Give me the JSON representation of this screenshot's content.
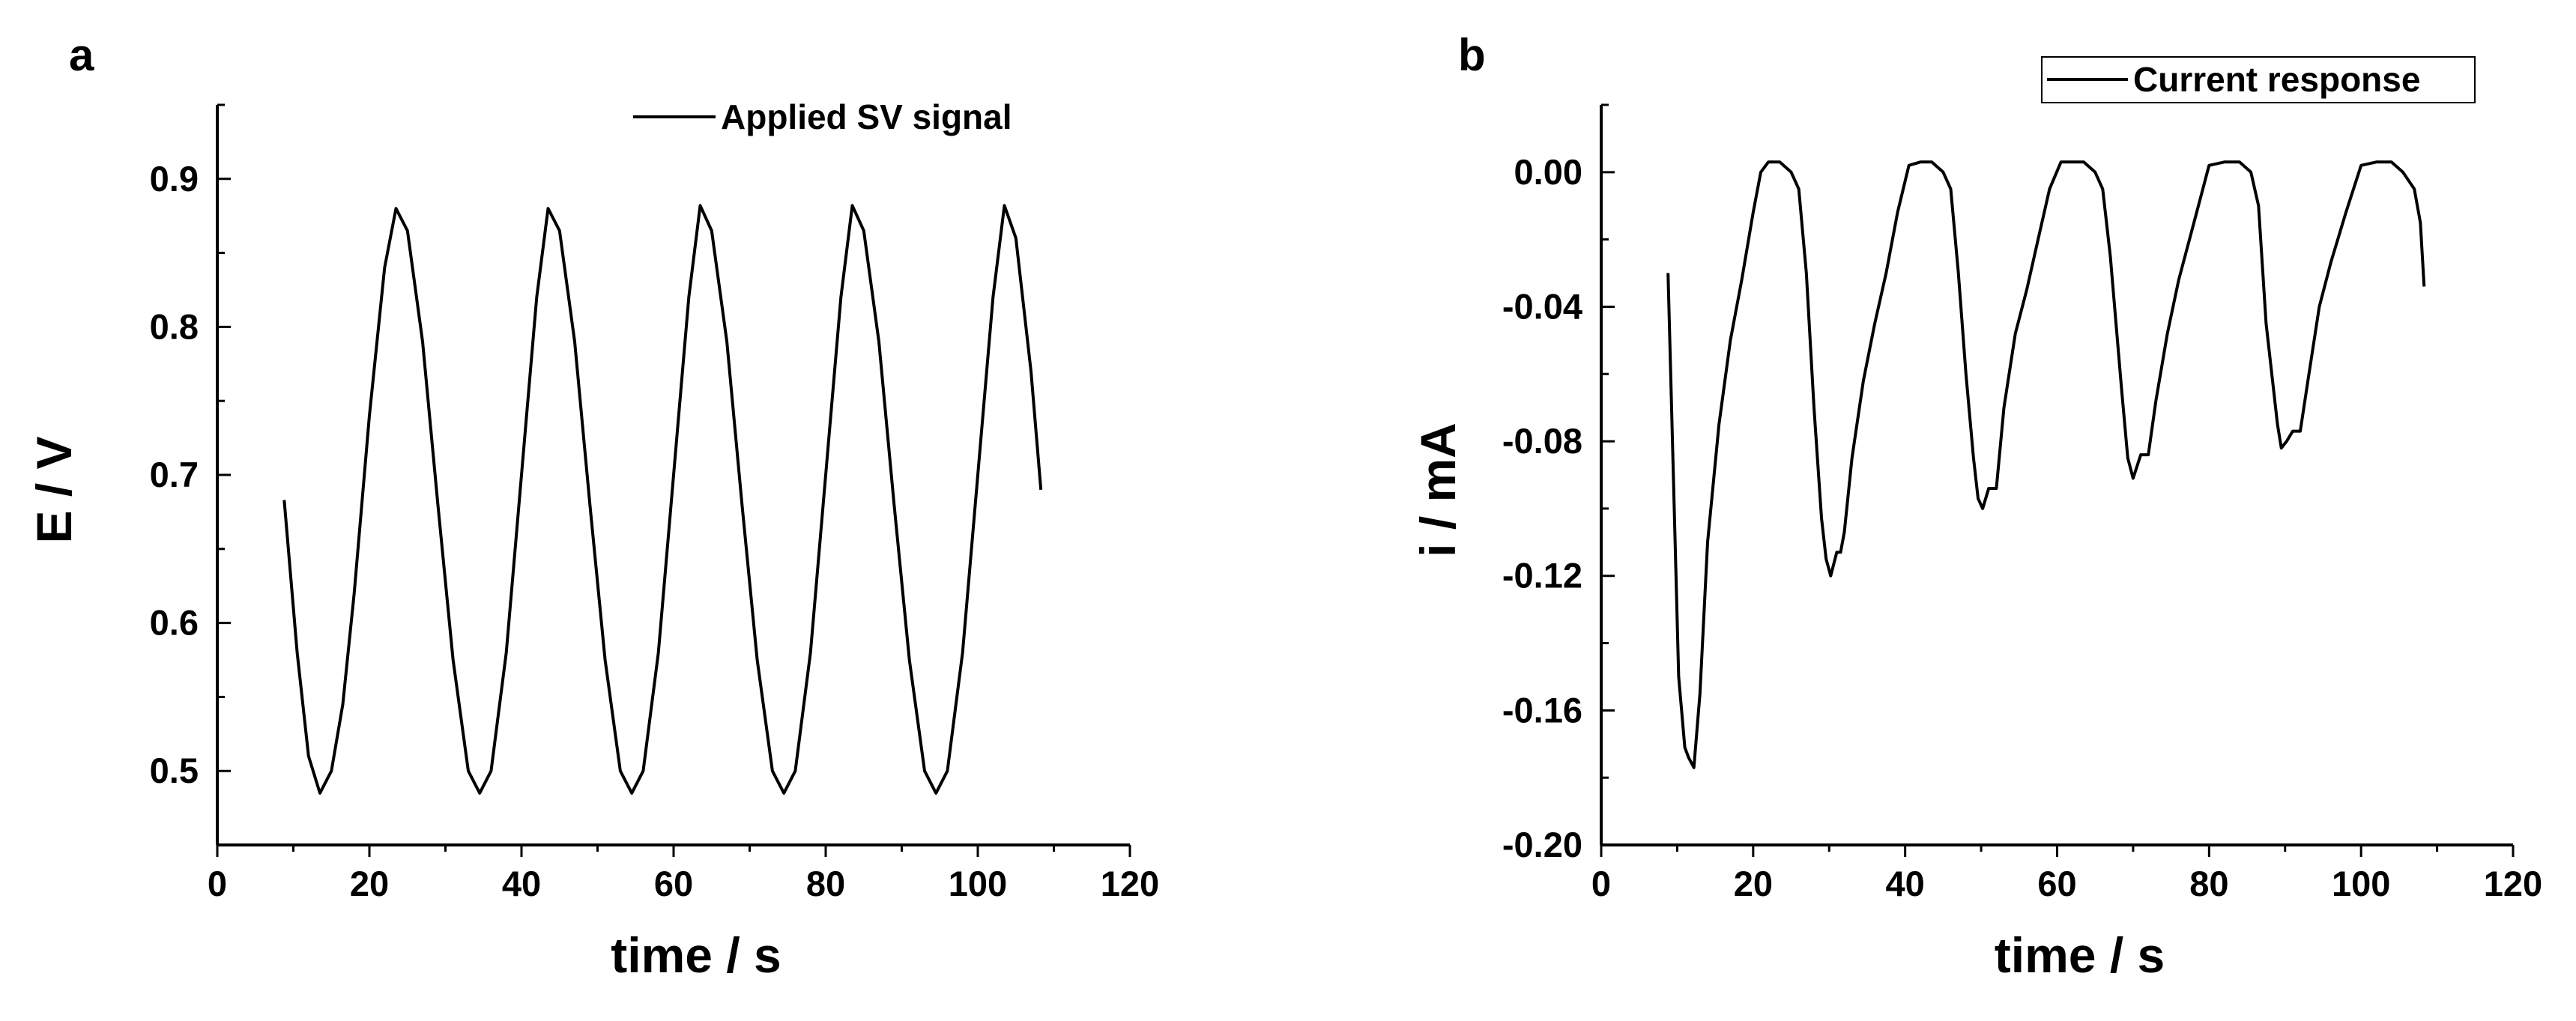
{
  "figure": {
    "panels": [
      "a",
      "b"
    ]
  },
  "chart_data": [
    {
      "panel": "a",
      "type": "line",
      "title": "",
      "xlabel": "time / s",
      "ylabel": "E / V",
      "xlim": [
        0,
        120
      ],
      "ylim": [
        0.45,
        0.95
      ],
      "xticks": [
        0,
        20,
        40,
        60,
        80,
        100,
        120
      ],
      "xtick_labels": [
        "0",
        "20",
        "40",
        "60",
        "80",
        "100",
        "120"
      ],
      "yticks": [
        0.5,
        0.6,
        0.7,
        0.8,
        0.9
      ],
      "ytick_labels": [
        "0.5",
        "0.6",
        "0.7",
        "0.8",
        "0.9"
      ],
      "grid": false,
      "legend_position": "top-right",
      "series": [
        {
          "name": "Applied SV signal",
          "color": "#000000",
          "x": [
            8.8,
            10.5,
            12.0,
            13.5,
            15.0,
            16.5,
            18.0,
            20.0,
            22.0,
            23.5,
            25.0,
            27.0,
            29.0,
            31.0,
            33.0,
            34.5,
            36.0,
            38.0,
            40.0,
            42.0,
            43.5,
            45.0,
            47.0,
            49.0,
            51.0,
            53.0,
            54.5,
            56.0,
            58.0,
            60.0,
            62.0,
            63.5,
            65.0,
            67.0,
            69.0,
            71.0,
            73.0,
            74.5,
            76.0,
            78.0,
            80.0,
            82.0,
            83.5,
            85.0,
            87.0,
            89.0,
            91.0,
            93.0,
            94.5,
            96.0,
            98.0,
            100.0,
            102.0,
            103.5,
            105.0,
            107.0,
            108.3
          ],
          "y": [
            0.683,
            0.58,
            0.51,
            0.485,
            0.5,
            0.545,
            0.62,
            0.74,
            0.84,
            0.88,
            0.865,
            0.79,
            0.68,
            0.575,
            0.5,
            0.485,
            0.5,
            0.58,
            0.7,
            0.82,
            0.88,
            0.865,
            0.79,
            0.68,
            0.575,
            0.5,
            0.485,
            0.5,
            0.58,
            0.7,
            0.82,
            0.882,
            0.865,
            0.79,
            0.68,
            0.575,
            0.5,
            0.485,
            0.5,
            0.58,
            0.7,
            0.82,
            0.882,
            0.865,
            0.79,
            0.68,
            0.575,
            0.5,
            0.485,
            0.5,
            0.58,
            0.7,
            0.82,
            0.882,
            0.86,
            0.77,
            0.69
          ]
        }
      ]
    },
    {
      "panel": "b",
      "type": "line",
      "title": "",
      "xlabel": "time / s",
      "ylabel": "i / mA",
      "xlim": [
        0,
        120
      ],
      "ylim": [
        -0.2,
        0.02
      ],
      "xticks": [
        0,
        20,
        40,
        60,
        80,
        100,
        120
      ],
      "xtick_labels": [
        "0",
        "20",
        "40",
        "60",
        "80",
        "100",
        "120"
      ],
      "yticks": [
        -0.2,
        -0.16,
        -0.12,
        -0.08,
        -0.04,
        0.0
      ],
      "ytick_labels": [
        "-0.20",
        "-0.16",
        "-0.12",
        "-0.08",
        "-0.04",
        "0.00"
      ],
      "grid": false,
      "legend_position": "top-right",
      "series": [
        {
          "name": "Current response",
          "color": "#000000",
          "x": [
            8.8,
            9.5,
            10.2,
            11.0,
            11.5,
            12.2,
            13.0,
            14.0,
            15.5,
            17.0,
            18.5,
            20.0,
            21.0,
            22.0,
            23.5,
            25.0,
            26.0,
            27.0,
            28.0,
            29.0,
            29.6,
            30.2,
            31.0,
            31.5,
            32.0,
            33.0,
            34.5,
            36.0,
            37.5,
            39.0,
            40.5,
            42.0,
            43.5,
            45.0,
            46.0,
            47.0,
            48.0,
            49.0,
            49.6,
            50.2,
            51.0,
            52.0,
            53.0,
            54.5,
            56.0,
            57.5,
            59.0,
            60.5,
            62.0,
            63.5,
            65.0,
            66.0,
            67.0,
            68.5,
            69.3,
            70.0,
            71.0,
            72.0,
            73.0,
            74.5,
            76.0,
            78.0,
            80.0,
            82.0,
            84.0,
            85.5,
            86.5,
            87.5,
            89.0,
            89.5,
            90.2,
            91.0,
            92.0,
            93.0,
            94.5,
            96.0,
            98.0,
            100.0,
            102.0,
            104.0,
            105.5,
            107.0,
            107.8,
            108.3
          ],
          "y": [
            -0.03,
            -0.09,
            -0.15,
            -0.171,
            -0.174,
            -0.177,
            -0.155,
            -0.11,
            -0.075,
            -0.05,
            -0.032,
            -0.012,
            0.0,
            0.003,
            0.003,
            0.0,
            -0.005,
            -0.03,
            -0.07,
            -0.103,
            -0.115,
            -0.12,
            -0.113,
            -0.113,
            -0.107,
            -0.085,
            -0.062,
            -0.045,
            -0.03,
            -0.012,
            0.002,
            0.003,
            0.003,
            0.0,
            -0.005,
            -0.03,
            -0.06,
            -0.085,
            -0.097,
            -0.1,
            -0.094,
            -0.094,
            -0.07,
            -0.048,
            -0.035,
            -0.02,
            -0.005,
            0.003,
            0.003,
            0.003,
            0.0,
            -0.005,
            -0.025,
            -0.065,
            -0.085,
            -0.091,
            -0.084,
            -0.084,
            -0.068,
            -0.048,
            -0.032,
            -0.015,
            0.002,
            0.003,
            0.003,
            0.0,
            -0.01,
            -0.045,
            -0.075,
            -0.082,
            -0.08,
            -0.077,
            -0.077,
            -0.062,
            -0.04,
            -0.027,
            -0.012,
            0.002,
            0.003,
            0.003,
            0.0,
            -0.005,
            -0.015,
            -0.034
          ]
        }
      ]
    }
  ]
}
